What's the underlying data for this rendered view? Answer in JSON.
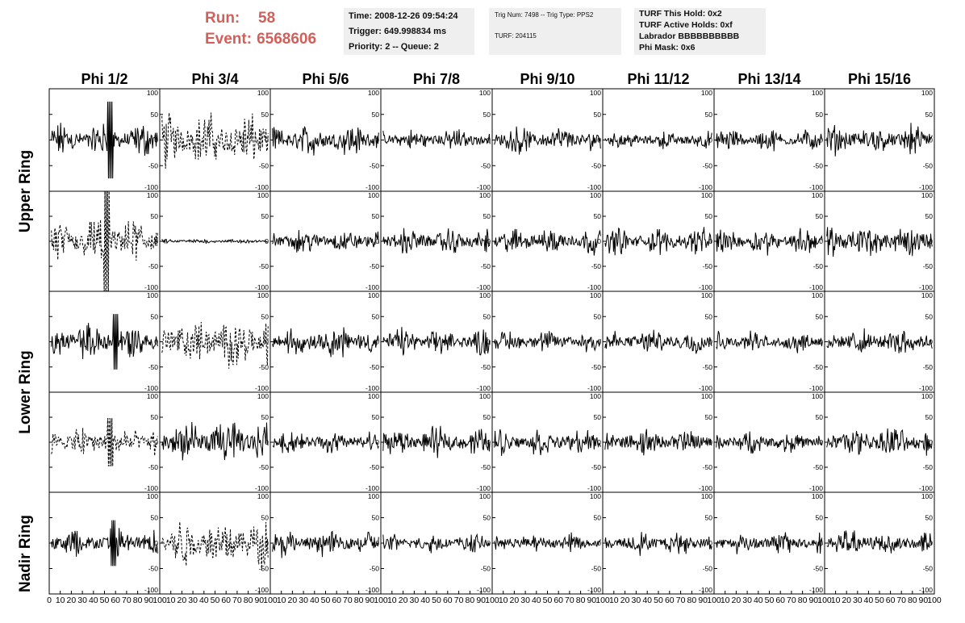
{
  "header": {
    "run_label": "Run:",
    "run_value": "58",
    "event_label": "Event:",
    "event_value": "6568606",
    "time": "Time: 2008-12-26 09:54:24",
    "trigger": "Trigger: 649.998834 ms",
    "priority": "Priority: 2 -- Queue: 2",
    "trig_num": "Trig Num: 7498 -- Trig Type: PPS2",
    "turf": "TURF: 204115",
    "turf_this_hold": "TURF This Hold: 0x2",
    "turf_active_holds": "TURF Active Holds: 0xf",
    "labrador": "Labrador BBBBBBBBBB",
    "phi_mask": "Phi Mask: 0x6",
    "colors": {
      "header_text": "#d2605a",
      "info_bg": "#efefef"
    }
  },
  "chart_data": {
    "type": "line",
    "columns": [
      "Phi 1/2",
      "Phi 3/4",
      "Phi 5/6",
      "Phi 7/8",
      "Phi 9/10",
      "Phi 11/12",
      "Phi 13/14",
      "Phi 15/16"
    ],
    "ring_labels": [
      "Upper Ring",
      "Lower Ring",
      "Nadir Ring"
    ],
    "xlim": [
      0,
      100
    ],
    "ylim": [
      -100,
      100
    ],
    "y_ticks": [
      "100",
      "50",
      "0",
      "-50",
      "-100"
    ],
    "x_ticks": [
      "0",
      "10",
      "20",
      "30",
      "40",
      "50",
      "60",
      "70",
      "80",
      "90",
      "100"
    ],
    "panels": [
      [
        {
          "amp": 28,
          "spike": [
            55,
            75
          ],
          "style": "solid"
        },
        {
          "amp": 45,
          "style": "dashed"
        },
        {
          "amp": 26,
          "style": "solid"
        },
        {
          "amp": 18,
          "style": "solid"
        },
        {
          "amp": 22,
          "style": "solid"
        },
        {
          "amp": 14,
          "style": "solid"
        },
        {
          "amp": 18,
          "style": "solid"
        },
        {
          "amp": 24,
          "style": "solid"
        }
      ],
      [
        {
          "amp": 40,
          "spike": [
            52,
            100
          ],
          "style": "dashed"
        },
        {
          "amp": 4,
          "style": "solid"
        },
        {
          "amp": 20,
          "style": "solid"
        },
        {
          "amp": 22,
          "style": "solid"
        },
        {
          "amp": 22,
          "style": "solid"
        },
        {
          "amp": 22,
          "style": "solid"
        },
        {
          "amp": 22,
          "style": "solid"
        },
        {
          "amp": 28,
          "style": "solid"
        }
      ],
      [
        {
          "amp": 30,
          "spike": [
            60,
            55
          ],
          "style": "solid"
        },
        {
          "amp": 42,
          "style": "dashed"
        },
        {
          "amp": 28,
          "style": "solid"
        },
        {
          "amp": 22,
          "style": "solid"
        },
        {
          "amp": 18,
          "style": "solid"
        },
        {
          "amp": 20,
          "style": "solid"
        },
        {
          "amp": 18,
          "style": "solid"
        },
        {
          "amp": 22,
          "style": "solid"
        }
      ],
      [
        {
          "amp": 28,
          "spike": [
            55,
            48
          ],
          "style": "dashed"
        },
        {
          "amp": 38,
          "style": "solid"
        },
        {
          "amp": 20,
          "style": "solid"
        },
        {
          "amp": 24,
          "style": "solid"
        },
        {
          "amp": 22,
          "style": "solid"
        },
        {
          "amp": 22,
          "style": "solid"
        },
        {
          "amp": 18,
          "style": "solid"
        },
        {
          "amp": 26,
          "style": "solid"
        }
      ],
      [
        {
          "amp": 26,
          "spike": [
            58,
            45
          ],
          "style": "solid"
        },
        {
          "amp": 42,
          "style": "dashed"
        },
        {
          "amp": 22,
          "style": "solid"
        },
        {
          "amp": 16,
          "style": "solid"
        },
        {
          "amp": 16,
          "style": "solid"
        },
        {
          "amp": 18,
          "style": "solid"
        },
        {
          "amp": 18,
          "style": "solid"
        },
        {
          "amp": 22,
          "style": "solid"
        }
      ]
    ]
  }
}
